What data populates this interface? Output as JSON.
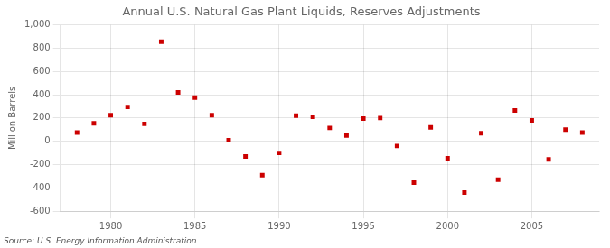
{
  "chart_data": {
    "type": "scatter",
    "title": "Annual U.S. Natural Gas Plant Liquids, Reserves Adjustments",
    "ylabel": "Million Barrels",
    "annotations": [
      "Source: U.S. Energy Information Administration"
    ],
    "x": [
      1978,
      1979,
      1980,
      1981,
      1982,
      1983,
      1984,
      1985,
      1986,
      1987,
      1988,
      1989,
      1990,
      1991,
      1992,
      1993,
      1994,
      1995,
      1996,
      1997,
      1998,
      1999,
      2000,
      2001,
      2002,
      2003,
      2004,
      2005,
      2006,
      2007,
      2008
    ],
    "values": [
      75,
      155,
      225,
      295,
      150,
      855,
      420,
      375,
      225,
      10,
      -130,
      -290,
      -100,
      220,
      210,
      115,
      50,
      195,
      200,
      -40,
      -355,
      120,
      -145,
      -440,
      70,
      -330,
      265,
      180,
      -155,
      100,
      75
    ],
    "color": "#cc0000",
    "marker": "square",
    "xlim": [
      1977,
      2009
    ],
    "xticks": [
      1980,
      1985,
      1990,
      1995,
      2000,
      2005
    ],
    "ylim": [
      -600,
      1000
    ],
    "yticks": [
      -600,
      -400,
      -200,
      0,
      200,
      400,
      600,
      800,
      {
        "value": 1000,
        "label": "1,000"
      }
    ],
    "grid": true
  }
}
